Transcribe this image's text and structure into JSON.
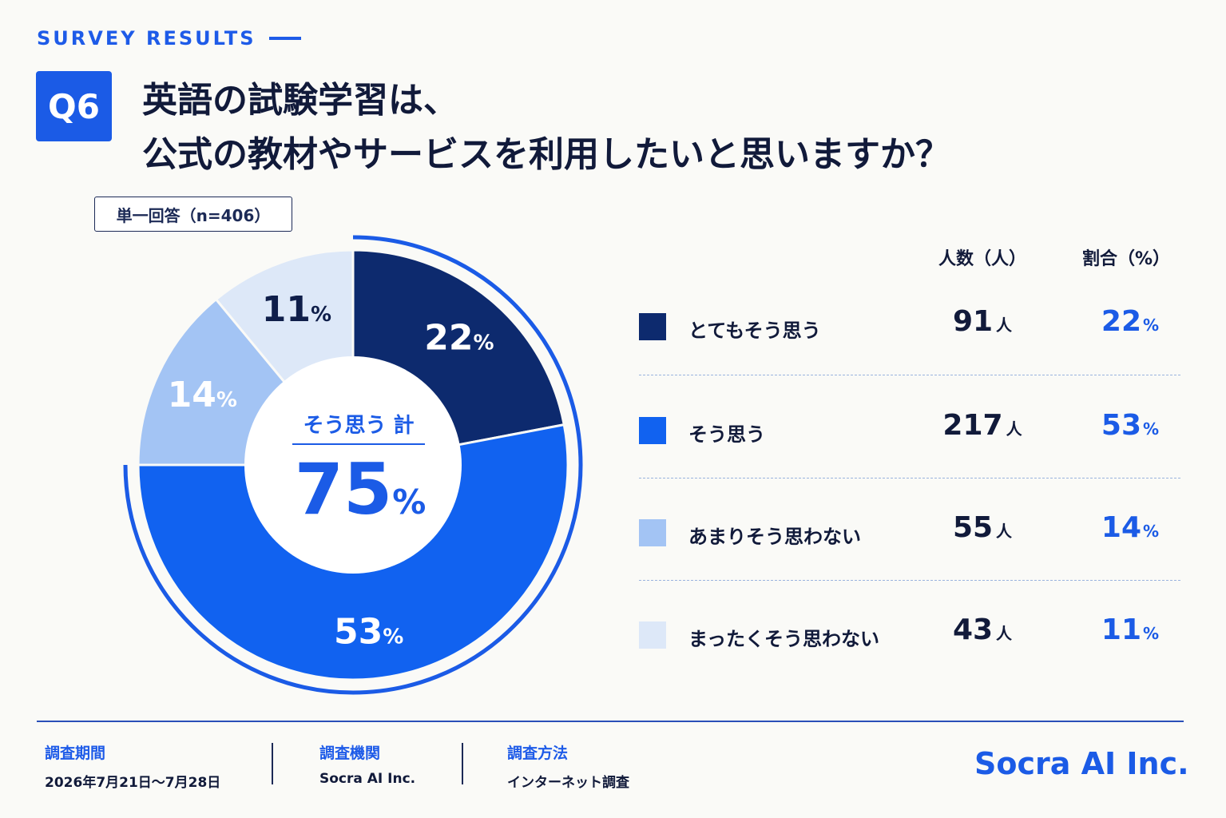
{
  "header": {
    "eyebrow": "SURVEY RESULTS",
    "question_no": "Q6",
    "title_line1": "英語の試験学習は、",
    "title_line2": "公式の教材やサービスを利用したいと思いますか？"
  },
  "answer_type": "単一回答（n=406）",
  "center": {
    "label": "そう思う 計",
    "value": "75",
    "unit": "%"
  },
  "table_headers": {
    "count": "人数（人）",
    "pct": "割合（%）"
  },
  "chart_data": {
    "type": "pie",
    "n": 406,
    "categories": [
      "とてもそう思う",
      "そう思う",
      "あまりそう思わない",
      "まったくそう思わない"
    ],
    "counts": [
      91,
      217,
      55,
      43
    ],
    "values": [
      22,
      53,
      14,
      11
    ],
    "colors": [
      "#0d2a6e",
      "#1162f0",
      "#a3c4f4",
      "#dde8f8"
    ],
    "slice_labels": [
      "22%",
      "53%",
      "14%",
      "11%"
    ],
    "highlight_total": 75
  },
  "rows": [
    {
      "label": "とてもそう思う",
      "count": "91",
      "count_unit": "人",
      "pct": "22",
      "pct_unit": "%",
      "color": "#0d2a6e"
    },
    {
      "label": "そう思う",
      "count": "217",
      "count_unit": "人",
      "pct": "53",
      "pct_unit": "%",
      "color": "#1162f0"
    },
    {
      "label": "あまりそう思わない",
      "count": "55",
      "count_unit": "人",
      "pct": "14",
      "pct_unit": "%",
      "color": "#a3c4f4"
    },
    {
      "label": "まったくそう思わない",
      "count": "43",
      "count_unit": "人",
      "pct": "11",
      "pct_unit": "%",
      "color": "#dde8f8"
    }
  ],
  "footer": {
    "period_label": "調査期間",
    "period_value": "2026年7月21日〜7月28日",
    "org_label": "調査機関",
    "org_value": "Socra AI Inc.",
    "method_label": "調査方法",
    "method_value": "インターネット調査",
    "brand": "Socra AI Inc."
  }
}
